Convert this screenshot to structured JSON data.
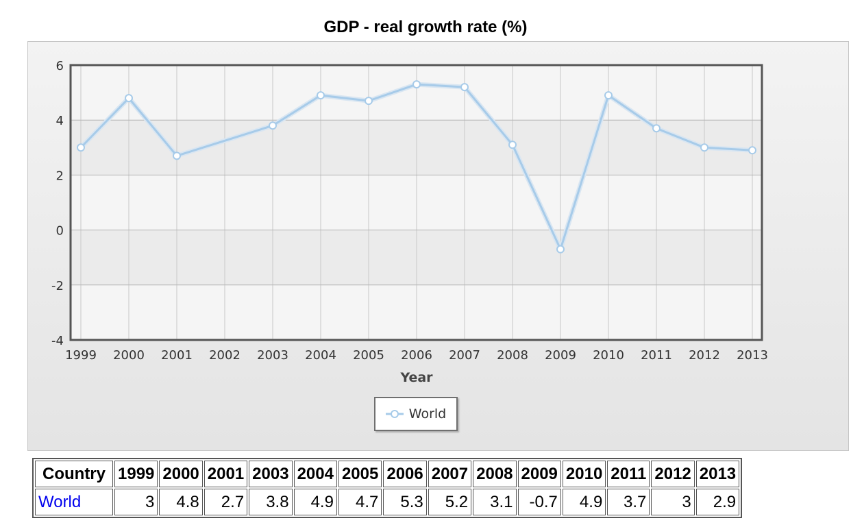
{
  "chart_data": {
    "type": "line",
    "title": "GDP - real growth rate (%)",
    "xlabel": "Year",
    "ylabel": "",
    "ylim": [
      -4,
      6
    ],
    "yticks": [
      "6",
      "4",
      "2",
      "0",
      "-2",
      "-4"
    ],
    "x": [
      "1999",
      "2000",
      "2001",
      "2002",
      "2003",
      "2004",
      "2005",
      "2006",
      "2007",
      "2008",
      "2009",
      "2010",
      "2011",
      "2012",
      "2013"
    ],
    "series": [
      {
        "name": "World",
        "color": "#a7cbe9",
        "points": [
          {
            "x": "1999",
            "y": 3
          },
          {
            "x": "2000",
            "y": 4.8
          },
          {
            "x": "2001",
            "y": 2.7
          },
          {
            "x": "2003",
            "y": 3.8
          },
          {
            "x": "2004",
            "y": 4.9
          },
          {
            "x": "2005",
            "y": 4.7
          },
          {
            "x": "2006",
            "y": 5.3
          },
          {
            "x": "2007",
            "y": 5.2
          },
          {
            "x": "2008",
            "y": 3.1
          },
          {
            "x": "2009",
            "y": -0.7
          },
          {
            "x": "2010",
            "y": 4.9
          },
          {
            "x": "2011",
            "y": 3.7
          },
          {
            "x": "2012",
            "y": 3
          },
          {
            "x": "2013",
            "y": 2.9
          }
        ]
      }
    ],
    "legend": {
      "position": "bottom-center",
      "label": "World"
    }
  },
  "table": {
    "headers": [
      "Country",
      "1999",
      "2000",
      "2001",
      "2003",
      "2004",
      "2005",
      "2006",
      "2007",
      "2008",
      "2009",
      "2010",
      "2011",
      "2012",
      "2013"
    ],
    "rows": [
      {
        "country": "World",
        "values": [
          "3",
          "4.8",
          "2.7",
          "3.8",
          "4.9",
          "4.7",
          "5.3",
          "5.2",
          "3.1",
          "-0.7",
          "4.9",
          "3.7",
          "3",
          "2.9"
        ]
      }
    ]
  }
}
